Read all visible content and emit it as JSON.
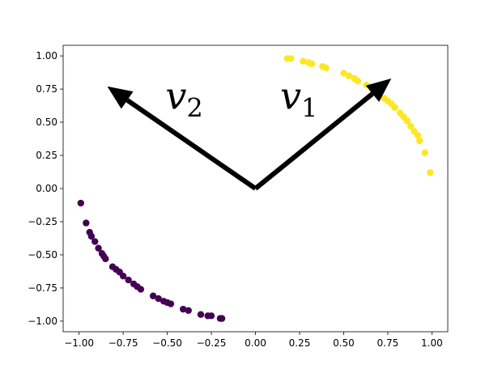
{
  "chart_data": {
    "type": "scatter",
    "xlim": [
      -1.09,
      1.09
    ],
    "ylim": [
      -1.08,
      1.08
    ],
    "xticks": [
      {
        "value": -1,
        "label": "−1.00"
      },
      {
        "value": -0.75,
        "label": "−0.75"
      },
      {
        "value": -0.5,
        "label": "−0.50"
      },
      {
        "value": -0.25,
        "label": "−0.25"
      },
      {
        "value": 0,
        "label": "0.00"
      },
      {
        "value": 0.25,
        "label": "0.25"
      },
      {
        "value": 0.5,
        "label": "0.50"
      },
      {
        "value": 0.75,
        "label": "0.75"
      },
      {
        "value": 1,
        "label": "1.00"
      }
    ],
    "yticks": [
      {
        "value": -1,
        "label": "−1.00"
      },
      {
        "value": -0.75,
        "label": "−0.75"
      },
      {
        "value": -0.5,
        "label": "−0.50"
      },
      {
        "value": -0.25,
        "label": "−0.25"
      },
      {
        "value": 0,
        "label": "0.00"
      },
      {
        "value": 0.25,
        "label": "0.25"
      },
      {
        "value": 0.5,
        "label": "0.50"
      },
      {
        "value": 0.75,
        "label": "0.75"
      },
      {
        "value": 1,
        "label": "1.00"
      }
    ],
    "series": [
      {
        "color": "#fde725",
        "x": [
          0.18,
          0.2,
          0.27,
          0.3,
          0.32,
          0.38,
          0.4,
          0.5,
          0.53,
          0.56,
          0.58,
          0.63,
          0.66,
          0.7,
          0.73,
          0.75,
          0.77,
          0.79,
          0.82,
          0.84,
          0.86,
          0.88,
          0.9,
          0.92,
          0.93,
          0.96,
          0.99
        ],
        "values": [
          0.98,
          0.98,
          0.96,
          0.95,
          0.94,
          0.92,
          0.91,
          0.87,
          0.85,
          0.83,
          0.81,
          0.78,
          0.75,
          0.71,
          0.68,
          0.66,
          0.64,
          0.61,
          0.57,
          0.54,
          0.51,
          0.47,
          0.43,
          0.4,
          0.36,
          0.27,
          0.12
        ]
      },
      {
        "color": "#440154",
        "x": [
          -0.99,
          -0.96,
          -0.94,
          -0.93,
          -0.91,
          -0.89,
          -0.87,
          -0.86,
          -0.85,
          -0.81,
          -0.79,
          -0.77,
          -0.75,
          -0.72,
          -0.69,
          -0.67,
          -0.65,
          -0.58,
          -0.55,
          -0.52,
          -0.5,
          -0.48,
          -0.41,
          -0.38,
          -0.31,
          -0.27,
          -0.25,
          -0.2,
          -0.19
        ],
        "values": [
          -0.11,
          -0.26,
          -0.33,
          -0.36,
          -0.4,
          -0.45,
          -0.49,
          -0.51,
          -0.53,
          -0.59,
          -0.61,
          -0.63,
          -0.66,
          -0.69,
          -0.72,
          -0.74,
          -0.76,
          -0.81,
          -0.83,
          -0.85,
          -0.86,
          -0.87,
          -0.91,
          -0.92,
          -0.95,
          -0.96,
          -0.96,
          -0.98,
          -0.98
        ]
      }
    ],
    "arrows": [
      {
        "from": [
          0,
          0
        ],
        "to": [
          0.77,
          0.83
        ],
        "text": "v",
        "subscript": "1",
        "at": [
          0.14,
          0.6
        ]
      },
      {
        "from": [
          0,
          0
        ],
        "to": [
          -0.84,
          0.77
        ],
        "text": "v",
        "subscript": "2",
        "at": [
          -0.51,
          0.6
        ]
      }
    ]
  }
}
